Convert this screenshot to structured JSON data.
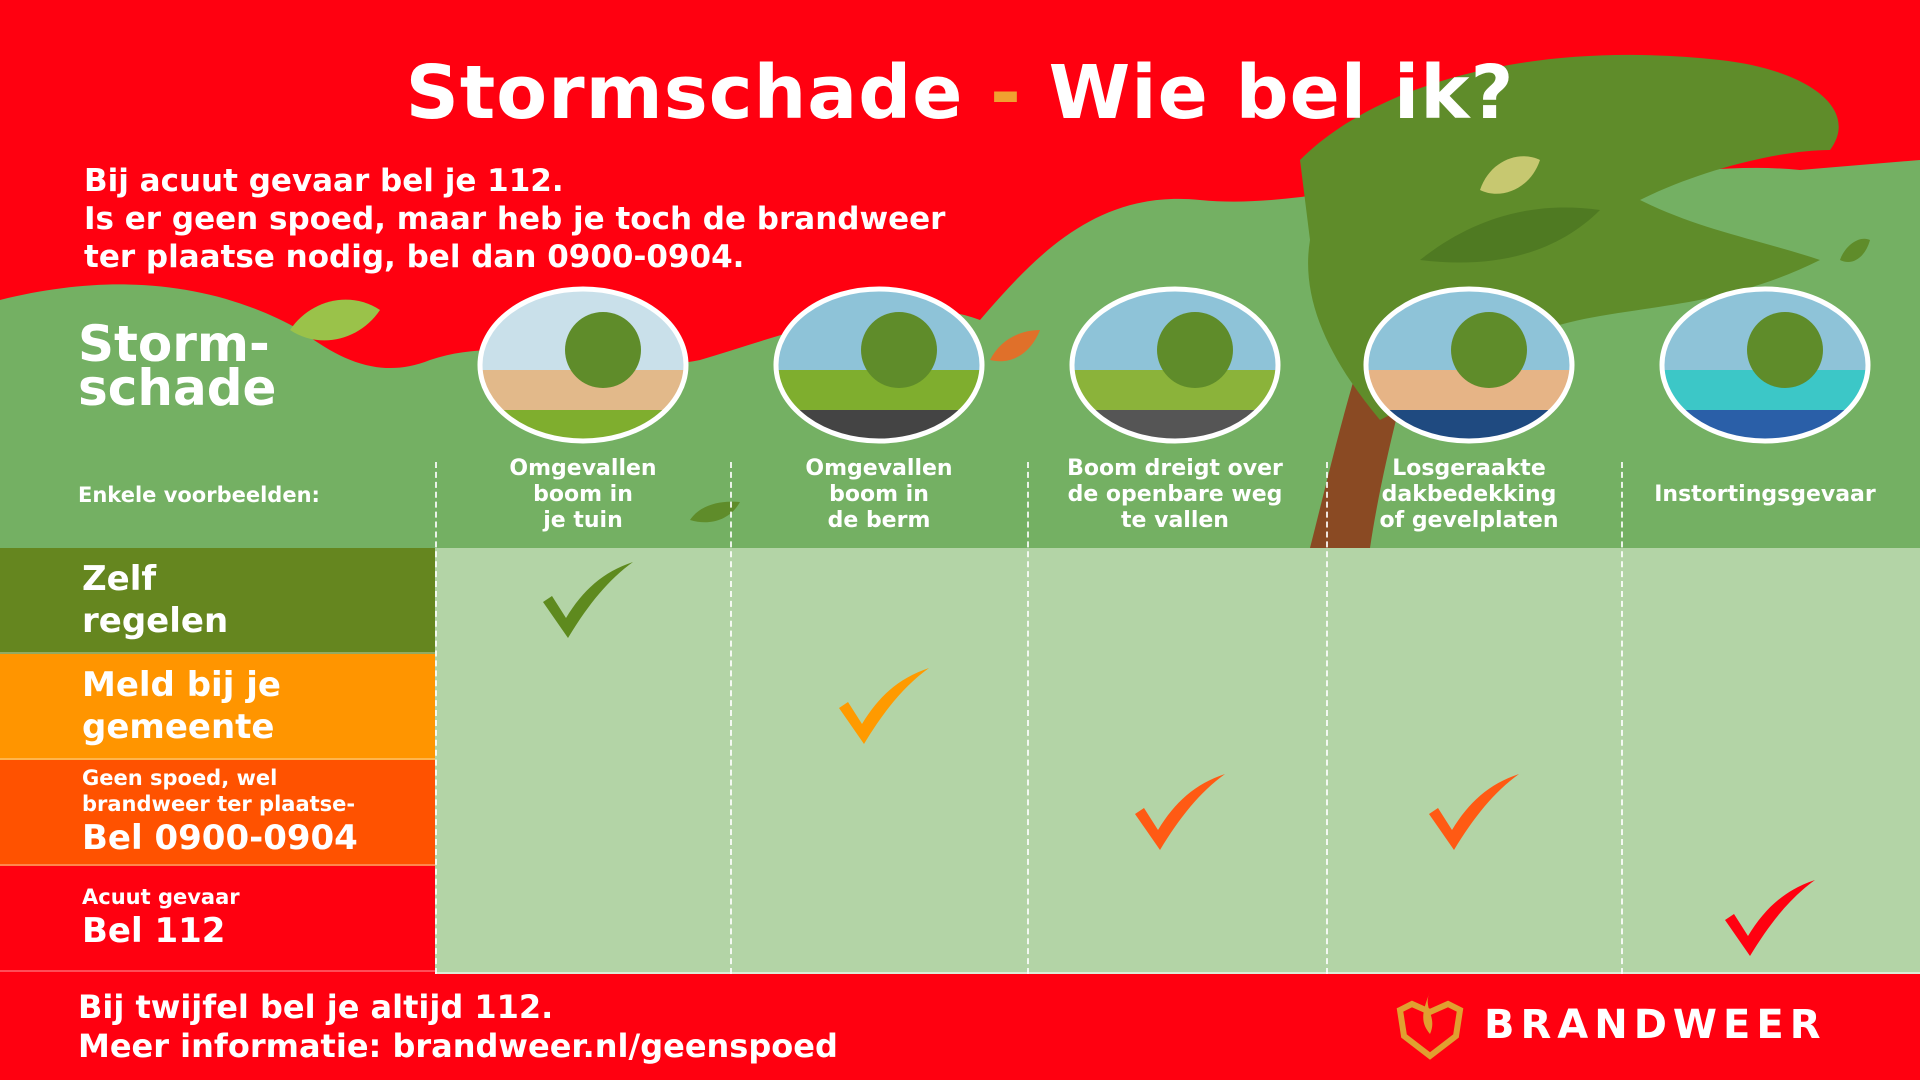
{
  "header": {
    "title_part1": "Stormschade",
    "title_separator": "-",
    "title_part2": "Wie bel ik?",
    "intro_lines": [
      "Bij acuut gevaar bel je 112.",
      "Is er geen spoed, maar heb je toch de brandweer",
      "ter plaatse nodig, bel dan 0900-0904."
    ]
  },
  "section": {
    "title_line1": "Storm-",
    "title_line2": "schade",
    "examples_label": "Enkele voorbeelden:"
  },
  "columns": [
    {
      "lines": [
        "Omgevallen",
        "boom in",
        "je tuin"
      ],
      "icon": "fallen-tree-garden-icon"
    },
    {
      "lines": [
        "Omgevallen",
        "boom in",
        "de berm"
      ],
      "icon": "fallen-tree-roadside-icon"
    },
    {
      "lines": [
        "Boom dreigt over",
        "de openbare weg",
        "te vallen"
      ],
      "icon": "tree-over-road-icon"
    },
    {
      "lines": [
        "Losgeraakte",
        "dakbedekking",
        "of gevelplaten"
      ],
      "icon": "damaged-roof-icon"
    },
    {
      "lines": [
        "Instortingsgevaar"
      ],
      "icon": "collapse-danger-icon"
    }
  ],
  "rows": [
    {
      "lines": [
        "Zelf",
        "regelen"
      ],
      "color": "#65861f",
      "check_color": "#5e8a1e",
      "checks": [
        true,
        false,
        false,
        false,
        false
      ]
    },
    {
      "lines": [
        "Meld bij je",
        "gemeente"
      ],
      "color": "#ff9500",
      "check_color": "#ff9a00",
      "checks": [
        false,
        true,
        false,
        false,
        false
      ]
    },
    {
      "small_lines": [
        "Geen spoed, wel",
        "brandweer ter plaatse-"
      ],
      "lines": [
        "Bel 0900-0904"
      ],
      "color": "#ff5200",
      "check_color": "#ff5a14",
      "checks": [
        false,
        false,
        true,
        true,
        false
      ]
    },
    {
      "small_lines": [
        "Acuut gevaar"
      ],
      "lines": [
        "Bel 112"
      ],
      "color": "#ff0010",
      "check_color": "#ff0010",
      "checks": [
        false,
        false,
        false,
        false,
        true
      ]
    }
  ],
  "footer": {
    "line1": "Bij twijfel bel je altijd 112.",
    "line2": "Meer informatie: brandweer.nl/geenspoed",
    "logo_text": "BRANDWEER"
  },
  "colors": {
    "red": "#ff0010",
    "green_bg": "#74b063",
    "table_bg": "#b3d4a6",
    "tree": "#5f8c2a",
    "trunk": "#8a4a23"
  }
}
